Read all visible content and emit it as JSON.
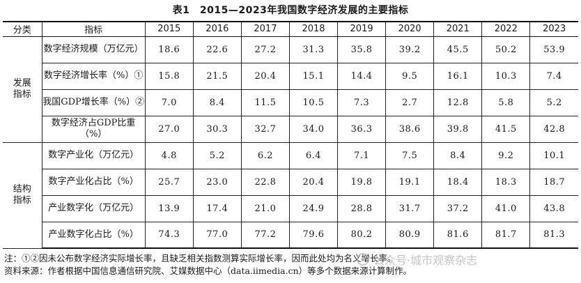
{
  "title": "表1　2015—2023年我国数字经济发展的主要指标",
  "table": {
    "headers": [
      "分类",
      "指标",
      "2015",
      "2016",
      "2017",
      "2018",
      "2019",
      "2020",
      "2021",
      "2022",
      "2023"
    ],
    "groups": [
      {
        "category": "发展\n指标",
        "rows": [
          {
            "indicator": "数字经济规模（万亿元）",
            "values": [
              "18.6",
              "22.6",
              "27.2",
              "31.3",
              "35.8",
              "39.2",
              "45.5",
              "50.2",
              "53.9"
            ]
          },
          {
            "indicator": "数字经济增长率（%）①",
            "values": [
              "15.8",
              "21.5",
              "20.4",
              "15.1",
              "14.4",
              "9.5",
              "16.1",
              "10.3",
              "7.4"
            ]
          },
          {
            "indicator": "我国GDP增长率（%）②",
            "values": [
              "7.0",
              "8.4",
              "11.5",
              "10.5",
              "7.3",
              "2.7",
              "12.8",
              "5.8",
              "5.2"
            ]
          },
          {
            "indicator": "数字经济占GDP比重（%）",
            "values": [
              "27.0",
              "30.3",
              "32.7",
              "34.0",
              "36.3",
              "38.6",
              "39.8",
              "41.5",
              "42.8"
            ]
          }
        ]
      },
      {
        "category": "结构\n指标",
        "rows": [
          {
            "indicator": "数字产业化（万亿元）",
            "values": [
              "4.8",
              "5.2",
              "6.2",
              "6.4",
              "7.1",
              "7.5",
              "8.4",
              "9.2",
              "10.1"
            ]
          },
          {
            "indicator": "数字产业化占比（%）",
            "values": [
              "25.7",
              "23.0",
              "22.8",
              "20.4",
              "19.8",
              "19.1",
              "18.4",
              "18.3",
              "18.7"
            ]
          },
          {
            "indicator": "产业数字化（万亿元）",
            "values": [
              "13.9",
              "17.4",
              "21.0",
              "24.9",
              "28.8",
              "31.7",
              "37.2",
              "41.0",
              "43.8"
            ]
          },
          {
            "indicator": "产业数字化占比（%）",
            "values": [
              "74.3",
              "77.0",
              "77.2",
              "79.6",
              "80.2",
              "80.9",
              "81.6",
              "81.7",
              "81.3"
            ]
          }
        ]
      }
    ]
  },
  "notes": [
    "注：①②因未公布数字经济实际增长率，且缺乏相关指数测算实际增长率，因而此处均为名义增长率。",
    "资料来源：作者根据中国信息通信研究院、艾媒数据中心（data.iimedia.cn）等多个数据来源计算制作。"
  ],
  "watermark": "公众号·城市观察杂志"
}
